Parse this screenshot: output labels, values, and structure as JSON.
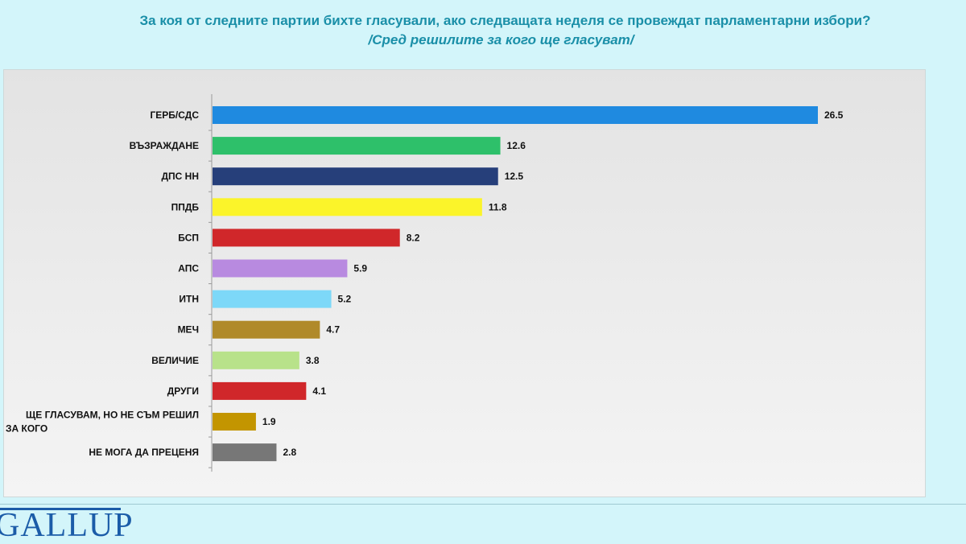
{
  "header": {
    "title": "За коя от следните партии бихте  гласували,  ако следващата неделя се провеждат парламентарни избори?",
    "subtitle": "/Сред решилите за кого ще гласуват/"
  },
  "chart_data": {
    "type": "bar",
    "orientation": "horizontal",
    "categories": [
      "ГЕРБ/СДС",
      "ВЪЗРАЖДАНЕ",
      "ДПС НН",
      "ППДБ",
      "БСП",
      "АПС",
      "ИТН",
      "МЕЧ",
      "ВЕЛИЧИЕ",
      "ДРУГИ",
      "ЩЕ ГЛАСУВАМ, НО НЕ СЪМ РЕШИЛ ЗА КОГО",
      "НЕ МОГА ДА ПРЕЦЕНЯ"
    ],
    "category_lines": [
      [
        "ГЕРБ/СДС"
      ],
      [
        "ВЪЗРАЖДАНЕ"
      ],
      [
        "ДПС НН"
      ],
      [
        "ППДБ"
      ],
      [
        "БСП"
      ],
      [
        "АПС"
      ],
      [
        "ИТН"
      ],
      [
        "МЕЧ"
      ],
      [
        "ВЕЛИЧИЕ"
      ],
      [
        "ДРУГИ"
      ],
      [
        "ЩЕ ГЛАСУВАМ, НО НЕ СЪМ РЕШИЛ",
        "ЗА КОГО"
      ],
      [
        "НЕ МОГА ДА ПРЕЦЕНЯ"
      ]
    ],
    "values": [
      26.5,
      12.6,
      12.5,
      11.8,
      8.2,
      5.9,
      5.2,
      4.7,
      3.8,
      4.1,
      1.9,
      2.8
    ],
    "value_labels": [
      "26.5",
      "12.6",
      "12.5",
      "11.8",
      "8.2",
      "5.9",
      "5.2",
      "4.7",
      "3.8",
      "4.1",
      "1.9",
      "2.8"
    ],
    "colors": [
      "#1f8ae0",
      "#2ec06a",
      "#263f7a",
      "#fbf42a",
      "#d0272a",
      "#b88ae0",
      "#7dd8f8",
      "#b08a2a",
      "#b8e28a",
      "#d0272a",
      "#c39500",
      "#777777"
    ],
    "xlim": [
      0,
      26.5
    ],
    "grid": false,
    "legend": "none"
  },
  "footer": {
    "logo": "GALLUP"
  }
}
